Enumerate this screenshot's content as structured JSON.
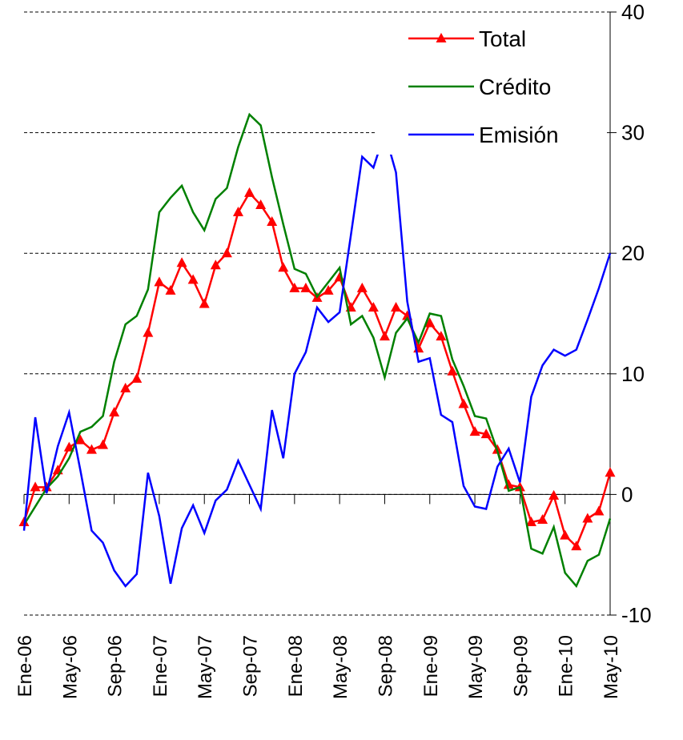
{
  "chart_data": {
    "type": "line",
    "categories": [
      "Ene-06",
      null,
      null,
      null,
      "May-06",
      null,
      null,
      null,
      "Sep-06",
      null,
      null,
      null,
      "Ene-07",
      null,
      null,
      null,
      "May-07",
      null,
      null,
      null,
      "Sep-07",
      null,
      null,
      null,
      "Ene-08",
      null,
      null,
      null,
      "May-08",
      null,
      null,
      null,
      "Sep-08",
      null,
      null,
      null,
      "Ene-09",
      null,
      null,
      null,
      "May-09",
      null,
      null,
      null,
      "Sep-09",
      null,
      null,
      null,
      "Ene-10",
      null,
      null,
      null,
      "May-10"
    ],
    "series": [
      {
        "name": "Total",
        "color": "#ff0000",
        "marker": "triangle",
        "values": [
          -2.3,
          0.6,
          0.6,
          2.0,
          3.9,
          4.5,
          3.7,
          4.1,
          6.8,
          8.8,
          9.6,
          13.4,
          17.6,
          16.9,
          19.2,
          17.8,
          15.8,
          19.0,
          20.0,
          23.4,
          25.0,
          24.0,
          22.6,
          18.8,
          17.1,
          17.1,
          16.3,
          16.9,
          18.0,
          15.5,
          17.1,
          15.5,
          13.1,
          15.5,
          14.8,
          12.1,
          14.2,
          13.1,
          10.2,
          7.5,
          5.2,
          5.0,
          3.7,
          0.8,
          0.6,
          -2.3,
          -2.1,
          -0.1,
          -3.4,
          -4.3,
          -2.0,
          -1.4,
          1.8
        ]
      },
      {
        "name": "Crédito",
        "color": "#008000",
        "values": [
          -2.5,
          -1.0,
          0.5,
          1.5,
          3.0,
          5.2,
          5.6,
          6.5,
          11.0,
          14.1,
          14.8,
          17.0,
          23.4,
          24.6,
          25.6,
          23.4,
          21.9,
          24.5,
          25.4,
          28.8,
          31.5,
          30.6,
          26.3,
          22.4,
          18.7,
          18.3,
          16.4,
          17.6,
          18.8,
          14.1,
          14.8,
          13.0,
          9.7,
          13.4,
          14.6,
          12.6,
          15.0,
          14.8,
          11.2,
          9.0,
          6.5,
          6.3,
          3.6,
          0.3,
          0.6,
          -4.5,
          -4.9,
          -2.7,
          -6.5,
          -7.6,
          -5.5,
          -5.0,
          -2.0
        ]
      },
      {
        "name": "Emisión",
        "color": "#0000ff",
        "values": [
          -3.0,
          6.4,
          0.1,
          4.0,
          6.8,
          2.0,
          -3.0,
          -4.0,
          -6.3,
          -7.6,
          -6.6,
          1.8,
          -1.8,
          -7.4,
          -2.8,
          -0.9,
          -3.2,
          -0.5,
          0.4,
          2.8,
          0.8,
          -1.2,
          7.0,
          3.0,
          10.0,
          11.8,
          15.5,
          14.3,
          15.1,
          21.5,
          28.0,
          27.1,
          30.0,
          26.7,
          16.0,
          11.0,
          11.3,
          6.6,
          6.0,
          0.7,
          -1.0,
          -1.2,
          2.3,
          3.8,
          1.0,
          8.1,
          10.7,
          12.0,
          11.5,
          12.0,
          14.5,
          17.1,
          20.0
        ]
      }
    ],
    "ylim": [
      -10,
      40
    ],
    "yticks": [
      -10,
      0,
      10,
      20,
      30,
      40
    ],
    "grid": true,
    "legend": "upper right"
  }
}
